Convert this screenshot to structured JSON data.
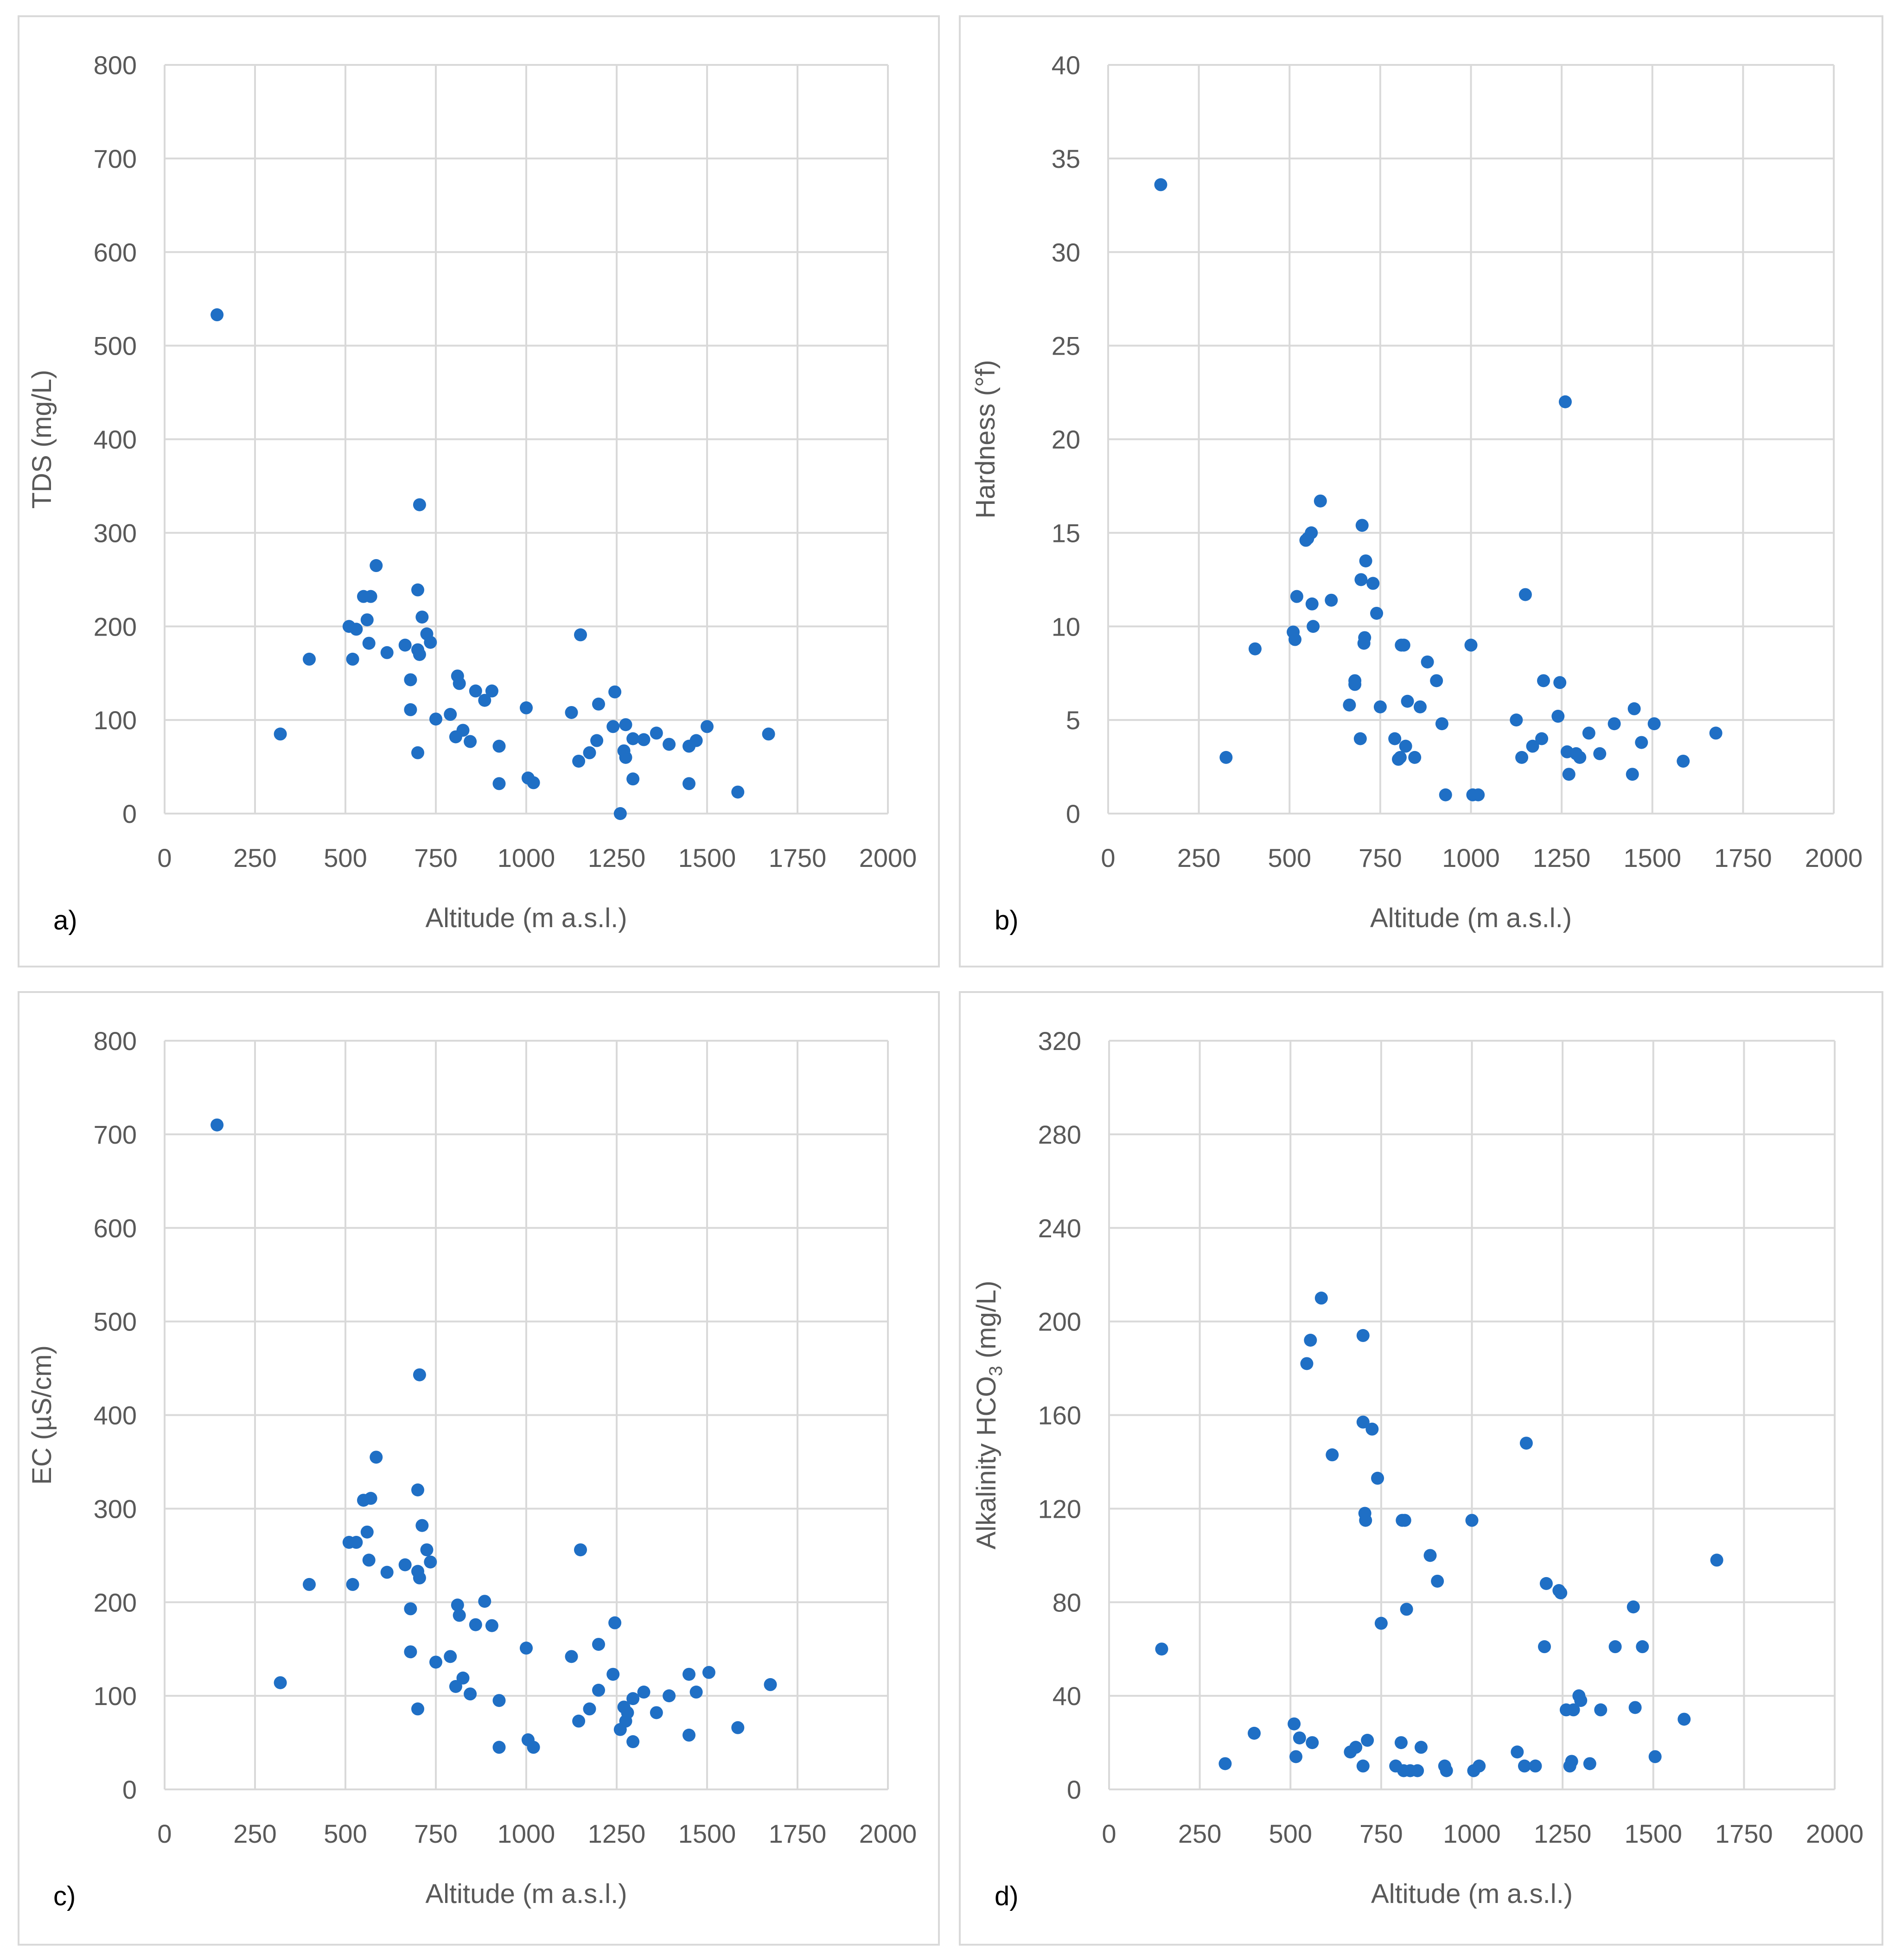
{
  "colors": {
    "marker": "#1f6fc5",
    "grid": "#d9d9d9",
    "text": "#595959"
  },
  "chart_data": [
    {
      "type": "scatter",
      "panel_label": "a)",
      "title": "",
      "xlabel": "Altitude  (m a.s.l.)",
      "ylabel": "TDS (mg/L)",
      "ylabel_sub": "",
      "ylabel_tail": "",
      "xlim": [
        0,
        2000
      ],
      "ylim": [
        0,
        800
      ],
      "xticks": [
        "0",
        "250",
        "500",
        "750",
        "1000",
        "1250",
        "1500",
        "1750",
        "2000"
      ],
      "yticks": [
        "0",
        "100",
        "200",
        "300",
        "400",
        "500",
        "600",
        "700",
        "800"
      ],
      "grid": true,
      "points": [
        [
          145,
          533
        ],
        [
          320,
          85
        ],
        [
          400,
          165
        ],
        [
          510,
          200
        ],
        [
          520,
          165
        ],
        [
          530,
          197
        ],
        [
          550,
          232
        ],
        [
          560,
          207
        ],
        [
          565,
          182
        ],
        [
          570,
          232
        ],
        [
          585,
          265
        ],
        [
          615,
          172
        ],
        [
          665,
          180
        ],
        [
          680,
          143
        ],
        [
          680,
          111
        ],
        [
          700,
          65
        ],
        [
          700,
          239
        ],
        [
          700,
          175
        ],
        [
          705,
          170
        ],
        [
          705,
          330
        ],
        [
          712,
          210
        ],
        [
          725,
          192
        ],
        [
          735,
          183
        ],
        [
          750,
          101
        ],
        [
          790,
          106
        ],
        [
          805,
          82
        ],
        [
          810,
          147
        ],
        [
          815,
          139
        ],
        [
          825,
          89
        ],
        [
          845,
          77
        ],
        [
          860,
          131
        ],
        [
          885,
          121
        ],
        [
          905,
          131
        ],
        [
          925,
          72
        ],
        [
          925,
          32
        ],
        [
          1000,
          113
        ],
        [
          1005,
          38
        ],
        [
          1020,
          33
        ],
        [
          1125,
          108
        ],
        [
          1145,
          56
        ],
        [
          1150,
          191
        ],
        [
          1175,
          65
        ],
        [
          1195,
          78
        ],
        [
          1200,
          117
        ],
        [
          1240,
          93
        ],
        [
          1245,
          130
        ],
        [
          1260,
          0
        ],
        [
          1270,
          67
        ],
        [
          1275,
          60
        ],
        [
          1275,
          95
        ],
        [
          1295,
          80
        ],
        [
          1295,
          37
        ],
        [
          1325,
          79
        ],
        [
          1360,
          86
        ],
        [
          1395,
          74
        ],
        [
          1450,
          32
        ],
        [
          1450,
          72
        ],
        [
          1470,
          78
        ],
        [
          1500,
          93
        ],
        [
          1585,
          23
        ],
        [
          1670,
          85
        ]
      ]
    },
    {
      "type": "scatter",
      "panel_label": "b)",
      "title": "",
      "xlabel": "Altitude  (m a.s.l.)",
      "ylabel": "Hardness (°f)",
      "ylabel_sub": "",
      "ylabel_tail": "",
      "xlim": [
        0,
        2000
      ],
      "ylim": [
        0,
        40
      ],
      "xticks": [
        "0",
        "250",
        "500",
        "750",
        "1000",
        "1250",
        "1500",
        "1750",
        "2000"
      ],
      "yticks": [
        "0",
        "5",
        "10",
        "15",
        "20",
        "25",
        "30",
        "35",
        "40"
      ],
      "grid": true,
      "points": [
        [
          145,
          33.6
        ],
        [
          325,
          3.0
        ],
        [
          405,
          8.8
        ],
        [
          510,
          9.7
        ],
        [
          515,
          9.3
        ],
        [
          520,
          11.6
        ],
        [
          545,
          14.6
        ],
        [
          550,
          14.7
        ],
        [
          560,
          15.0
        ],
        [
          562,
          11.2
        ],
        [
          565,
          10.0
        ],
        [
          585,
          16.7
        ],
        [
          615,
          11.4
        ],
        [
          665,
          5.8
        ],
        [
          680,
          6.9
        ],
        [
          680,
          7.1
        ],
        [
          695,
          4.0
        ],
        [
          697,
          12.5
        ],
        [
          700,
          15.4
        ],
        [
          705,
          9.1
        ],
        [
          707,
          9.4
        ],
        [
          710,
          13.5
        ],
        [
          730,
          12.3
        ],
        [
          740,
          10.7
        ],
        [
          750,
          5.7
        ],
        [
          790,
          4.0
        ],
        [
          800,
          2.9
        ],
        [
          805,
          3.0
        ],
        [
          808,
          9.0
        ],
        [
          815,
          9.0
        ],
        [
          820,
          3.6
        ],
        [
          825,
          6.0
        ],
        [
          845,
          3.0
        ],
        [
          860,
          5.7
        ],
        [
          880,
          8.1
        ],
        [
          905,
          7.1
        ],
        [
          920,
          4.8
        ],
        [
          930,
          1.0
        ],
        [
          1000,
          9.0
        ],
        [
          1005,
          1.0
        ],
        [
          1020,
          1.0
        ],
        [
          1125,
          5.0
        ],
        [
          1140,
          3.0
        ],
        [
          1150,
          11.7
        ],
        [
          1170,
          3.6
        ],
        [
          1195,
          4.0
        ],
        [
          1200,
          7.1
        ],
        [
          1240,
          5.2
        ],
        [
          1245,
          7.0
        ],
        [
          1260,
          22.0
        ],
        [
          1265,
          3.3
        ],
        [
          1270,
          2.1
        ],
        [
          1290,
          3.2
        ],
        [
          1300,
          3.0
        ],
        [
          1325,
          4.3
        ],
        [
          1355,
          3.2
        ],
        [
          1395,
          4.8
        ],
        [
          1445,
          2.1
        ],
        [
          1450,
          5.6
        ],
        [
          1470,
          3.8
        ],
        [
          1505,
          4.8
        ],
        [
          1585,
          2.8
        ],
        [
          1675,
          4.3
        ]
      ]
    },
    {
      "type": "scatter",
      "panel_label": "c)",
      "title": "",
      "xlabel": "Altitude  (m a.s.l.)",
      "ylabel": "EC (µS/cm)",
      "ylabel_sub": "",
      "ylabel_tail": "",
      "xlim": [
        0,
        2000
      ],
      "ylim": [
        0,
        800
      ],
      "xticks": [
        "0",
        "250",
        "500",
        "750",
        "1000",
        "1250",
        "1500",
        "1750",
        "2000"
      ],
      "yticks": [
        "0",
        "100",
        "200",
        "300",
        "400",
        "500",
        "600",
        "700",
        "800"
      ],
      "grid": true,
      "points": [
        [
          145,
          710
        ],
        [
          320,
          114
        ],
        [
          400,
          219
        ],
        [
          510,
          264
        ],
        [
          520,
          219
        ],
        [
          530,
          264
        ],
        [
          550,
          309
        ],
        [
          560,
          275
        ],
        [
          565,
          245
        ],
        [
          570,
          311
        ],
        [
          585,
          355
        ],
        [
          615,
          232
        ],
        [
          665,
          240
        ],
        [
          680,
          193
        ],
        [
          680,
          147
        ],
        [
          700,
          86
        ],
        [
          700,
          320
        ],
        [
          700,
          233
        ],
        [
          705,
          226
        ],
        [
          705,
          443
        ],
        [
          712,
          282
        ],
        [
          725,
          256
        ],
        [
          735,
          243
        ],
        [
          750,
          136
        ],
        [
          790,
          142
        ],
        [
          805,
          110
        ],
        [
          810,
          197
        ],
        [
          815,
          186
        ],
        [
          825,
          119
        ],
        [
          845,
          102
        ],
        [
          860,
          176
        ],
        [
          885,
          201
        ],
        [
          905,
          175
        ],
        [
          925,
          95
        ],
        [
          925,
          45
        ],
        [
          1000,
          151
        ],
        [
          1005,
          53
        ],
        [
          1020,
          45
        ],
        [
          1125,
          142
        ],
        [
          1145,
          73
        ],
        [
          1150,
          256
        ],
        [
          1175,
          86
        ],
        [
          1200,
          155
        ],
        [
          1200,
          106
        ],
        [
          1240,
          123
        ],
        [
          1245,
          178
        ],
        [
          1260,
          64
        ],
        [
          1270,
          88
        ],
        [
          1275,
          73
        ],
        [
          1280,
          82
        ],
        [
          1295,
          97
        ],
        [
          1295,
          51
        ],
        [
          1325,
          104
        ],
        [
          1360,
          82
        ],
        [
          1395,
          100
        ],
        [
          1450,
          58
        ],
        [
          1450,
          123
        ],
        [
          1470,
          104
        ],
        [
          1505,
          125
        ],
        [
          1585,
          66
        ],
        [
          1675,
          112
        ]
      ]
    },
    {
      "type": "scatter",
      "panel_label": "d)",
      "title": "",
      "xlabel": "Altitude  (m a.s.l.)",
      "ylabel": "Alkalinity HCO",
      "ylabel_sub": "3",
      "ylabel_tail": " (mg/L)",
      "xlim": [
        0,
        2000
      ],
      "ylim": [
        0,
        320
      ],
      "xticks": [
        "0",
        "250",
        "500",
        "750",
        "1000",
        "1250",
        "1500",
        "1750",
        "2000"
      ],
      "yticks": [
        "0",
        "40",
        "80",
        "120",
        "160",
        "200",
        "240",
        "280",
        "320"
      ],
      "grid": true,
      "points": [
        [
          145,
          60
        ],
        [
          320,
          11
        ],
        [
          400,
          24
        ],
        [
          510,
          28
        ],
        [
          515,
          14
        ],
        [
          525,
          22
        ],
        [
          545,
          182
        ],
        [
          555,
          192
        ],
        [
          560,
          20
        ],
        [
          585,
          210
        ],
        [
          615,
          143
        ],
        [
          665,
          16
        ],
        [
          680,
          18
        ],
        [
          700,
          10
        ],
        [
          700,
          194
        ],
        [
          700,
          157
        ],
        [
          705,
          118
        ],
        [
          707,
          115
        ],
        [
          712,
          21
        ],
        [
          725,
          154
        ],
        [
          740,
          133
        ],
        [
          750,
          71
        ],
        [
          790,
          10
        ],
        [
          805,
          20
        ],
        [
          808,
          115
        ],
        [
          812,
          8
        ],
        [
          815,
          115
        ],
        [
          820,
          77
        ],
        [
          830,
          8
        ],
        [
          850,
          8
        ],
        [
          860,
          18
        ],
        [
          885,
          100
        ],
        [
          905,
          89
        ],
        [
          925,
          10
        ],
        [
          930,
          8
        ],
        [
          1000,
          115
        ],
        [
          1005,
          8
        ],
        [
          1020,
          10
        ],
        [
          1125,
          16
        ],
        [
          1145,
          10
        ],
        [
          1150,
          148
        ],
        [
          1175,
          10
        ],
        [
          1200,
          61
        ],
        [
          1205,
          88
        ],
        [
          1240,
          85
        ],
        [
          1245,
          84
        ],
        [
          1260,
          34
        ],
        [
          1270,
          10
        ],
        [
          1275,
          12
        ],
        [
          1280,
          34
        ],
        [
          1295,
          40
        ],
        [
          1300,
          38
        ],
        [
          1325,
          11
        ],
        [
          1355,
          34
        ],
        [
          1395,
          61
        ],
        [
          1445,
          78
        ],
        [
          1450,
          35
        ],
        [
          1470,
          61
        ],
        [
          1505,
          14
        ],
        [
          1585,
          30
        ],
        [
          1675,
          98
        ]
      ]
    }
  ]
}
